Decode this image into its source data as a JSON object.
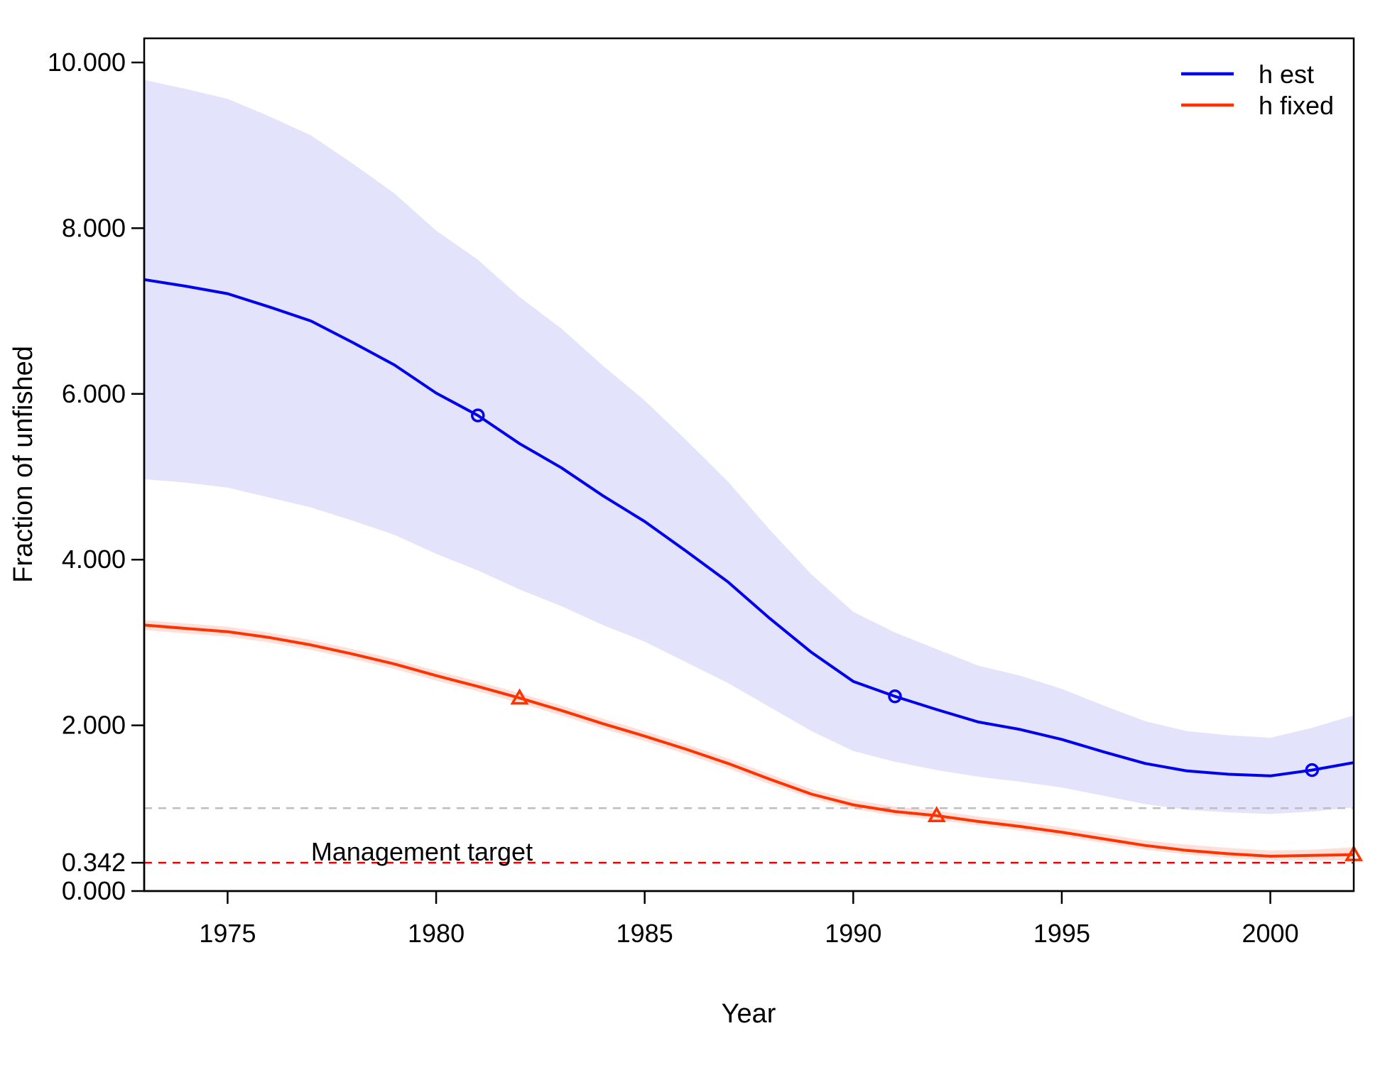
{
  "chart_data": {
    "type": "line",
    "title": "",
    "xlabel": "Year",
    "ylabel": "Fraction of unfished",
    "xlim": [
      1973,
      2002
    ],
    "ylim": [
      0,
      10
    ],
    "x_ticks": [
      1975,
      1980,
      1985,
      1990,
      1995,
      2000
    ],
    "y_ticks": [
      {
        "value": 0,
        "label": "0.000"
      },
      {
        "value": 0.342,
        "label": "0.342"
      },
      {
        "value": 2,
        "label": "2.000"
      },
      {
        "value": 4,
        "label": "4.000"
      },
      {
        "value": 6,
        "label": "6.000"
      },
      {
        "value": 8,
        "label": "8.000"
      },
      {
        "value": 10,
        "label": "10.000"
      }
    ],
    "grid": false,
    "legend_position": "top-right",
    "x": [
      1973,
      1974,
      1975,
      1976,
      1977,
      1978,
      1979,
      1980,
      1981,
      1982,
      1983,
      1984,
      1985,
      1986,
      1987,
      1988,
      1989,
      1990,
      1991,
      1992,
      1993,
      1994,
      1995,
      1996,
      1997,
      1998,
      1999,
      2000,
      2001,
      2002
    ],
    "series": [
      {
        "name": "h est",
        "color": "#0000ee",
        "band_color": "#e3e3fc",
        "marker": "circle",
        "marker_years": [
          1981,
          1991,
          2001
        ],
        "values": [
          7.38,
          7.3,
          7.21,
          7.05,
          6.88,
          6.62,
          6.35,
          6.01,
          5.74,
          5.4,
          5.11,
          4.77,
          4.46,
          4.1,
          3.73,
          3.29,
          2.88,
          2.53,
          2.35,
          2.19,
          2.04,
          1.95,
          1.83,
          1.68,
          1.54,
          1.45,
          1.41,
          1.39,
          1.46,
          1.55
        ],
        "lower": [
          4.97,
          4.93,
          4.87,
          4.75,
          4.63,
          4.47,
          4.3,
          4.07,
          3.87,
          3.64,
          3.44,
          3.21,
          3.01,
          2.76,
          2.51,
          2.22,
          1.93,
          1.69,
          1.56,
          1.46,
          1.38,
          1.32,
          1.25,
          1.15,
          1.05,
          0.98,
          0.95,
          0.93,
          0.96,
          1.01
        ],
        "upper": [
          9.79,
          9.68,
          9.56,
          9.35,
          9.12,
          8.78,
          8.42,
          7.97,
          7.62,
          7.17,
          6.79,
          6.34,
          5.92,
          5.44,
          4.94,
          4.36,
          3.82,
          3.37,
          3.12,
          2.92,
          2.72,
          2.6,
          2.44,
          2.24,
          2.05,
          1.93,
          1.88,
          1.85,
          1.97,
          2.12
        ]
      },
      {
        "name": "h fixed",
        "color": "#ff3300",
        "band_color": "#fde0da",
        "marker": "triangle",
        "marker_years": [
          1982,
          1992,
          2002
        ],
        "values": [
          3.21,
          3.17,
          3.13,
          3.06,
          2.97,
          2.86,
          2.74,
          2.6,
          2.47,
          2.33,
          2.18,
          2.02,
          1.87,
          1.71,
          1.54,
          1.35,
          1.17,
          1.04,
          0.96,
          0.91,
          0.84,
          0.78,
          0.71,
          0.63,
          0.55,
          0.49,
          0.45,
          0.42,
          0.43,
          0.44
        ],
        "lower": [
          3.15,
          3.11,
          3.07,
          3.0,
          2.91,
          2.8,
          2.68,
          2.54,
          2.41,
          2.27,
          2.12,
          1.96,
          1.81,
          1.65,
          1.48,
          1.29,
          1.12,
          0.99,
          0.91,
          0.86,
          0.79,
          0.73,
          0.66,
          0.58,
          0.5,
          0.44,
          0.4,
          0.37,
          0.37,
          0.37
        ],
        "upper": [
          3.27,
          3.23,
          3.19,
          3.12,
          3.03,
          2.92,
          2.8,
          2.66,
          2.53,
          2.39,
          2.24,
          2.08,
          1.93,
          1.77,
          1.6,
          1.41,
          1.23,
          1.1,
          1.02,
          0.97,
          0.9,
          0.84,
          0.77,
          0.69,
          0.61,
          0.56,
          0.52,
          0.49,
          0.5,
          0.53
        ]
      }
    ],
    "reference_lines": [
      {
        "y": 1.0,
        "color": "#bebebe",
        "style": "dashed"
      },
      {
        "y": 0.342,
        "color": "#ee0000",
        "style": "dashed",
        "label": "Management target",
        "label_x": 1977
      }
    ]
  }
}
